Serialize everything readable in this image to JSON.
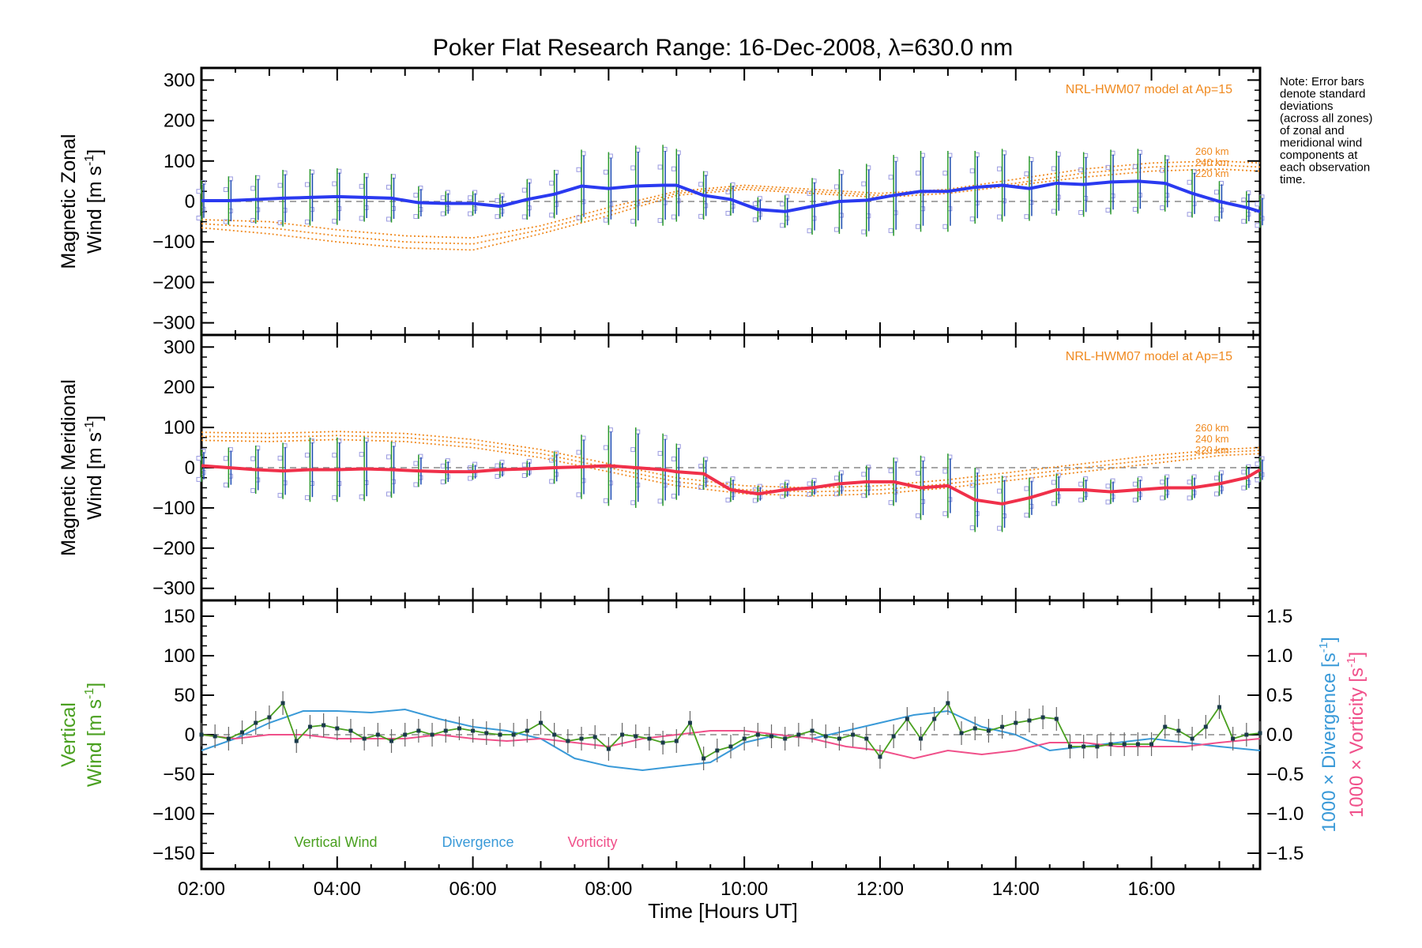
{
  "title": "Poker Flat Research Range: 16-Dec-2008, λ=630.0 nm",
  "note": [
    "Note: Error bars",
    "denote standard",
    "deviations",
    "(across all zones)",
    "of zonal and",
    "meridional wind",
    "components at",
    "each observation",
    "time."
  ],
  "xlabel": "Time [Hours UT]",
  "x_ticks": [
    "02:00",
    "04:00",
    "06:00",
    "08:00",
    "10:00",
    "12:00",
    "14:00",
    "16:00"
  ],
  "colors": {
    "zonal": "#2a3af0",
    "meridional": "#f0304a",
    "model": "#f08a20",
    "scatter": "#9a9ae0",
    "vertical": "#4aa020",
    "divergence": "#3a9ad8",
    "vorticity": "#f0508a",
    "errorbar_blue": "#1a4ab0",
    "errorbar_green": "#2a9a2a"
  },
  "chart_data": [
    {
      "type": "line",
      "panel": "zonal",
      "ylabel_line1": "Magnetic Zonal",
      "ylabel_line2": "Wind [m s",
      "ylabel_sup": "-1",
      "ylabel_close": "]",
      "ylim": [
        -330,
        330
      ],
      "y_ticks": [
        "300",
        "200",
        "100",
        "0",
        "−100",
        "−200",
        "−300"
      ],
      "y_tick_values": [
        300,
        200,
        100,
        0,
        -100,
        -200,
        -300
      ],
      "xlim": [
        2.0,
        17.6
      ],
      "model_label": "NRL-HWM07 model at Ap=15",
      "model_alt_labels": [
        "260 km",
        "240 km",
        "220 km"
      ],
      "series": [
        {
          "key": "wind",
          "x": [
            2.0,
            2.4,
            2.8,
            3.2,
            3.6,
            4.0,
            4.4,
            4.8,
            5.2,
            5.6,
            6.0,
            6.4,
            6.8,
            7.2,
            7.6,
            8.0,
            8.4,
            8.8,
            9.0,
            9.4,
            9.8,
            10.2,
            10.6,
            11.0,
            11.4,
            11.8,
            12.2,
            12.6,
            13.0,
            13.4,
            13.8,
            14.2,
            14.6,
            15.0,
            15.4,
            15.8,
            16.2,
            16.6,
            17.0,
            17.4,
            17.6
          ],
          "y": [
            2,
            2,
            5,
            8,
            10,
            12,
            10,
            8,
            -3,
            -5,
            -5,
            -12,
            5,
            18,
            38,
            32,
            38,
            40,
            40,
            15,
            5,
            -20,
            -25,
            -12,
            0,
            3,
            15,
            25,
            25,
            35,
            40,
            32,
            45,
            42,
            48,
            50,
            45,
            20,
            0,
            -15,
            -25
          ],
          "err": [
            50,
            60,
            60,
            70,
            70,
            70,
            60,
            60,
            40,
            30,
            30,
            30,
            50,
            60,
            90,
            90,
            100,
            100,
            90,
            60,
            40,
            30,
            40,
            70,
            80,
            90,
            100,
            100,
            100,
            90,
            90,
            80,
            80,
            80,
            80,
            80,
            70,
            60,
            50,
            40,
            40
          ]
        },
        {
          "key": "model260",
          "x": [
            2.0,
            3.0,
            4.0,
            5.0,
            6.0,
            7.0,
            8.0,
            9.0,
            10.0,
            11.0,
            12.0,
            13.0,
            14.0,
            15.0,
            16.0,
            17.0,
            17.6
          ],
          "y": [
            -45,
            -50,
            -70,
            -85,
            -90,
            -60,
            -15,
            25,
            40,
            30,
            20,
            30,
            55,
            80,
            95,
            100,
            95
          ]
        },
        {
          "key": "model240",
          "x": [
            2.0,
            3.0,
            4.0,
            5.0,
            6.0,
            7.0,
            8.0,
            9.0,
            10.0,
            11.0,
            12.0,
            13.0,
            14.0,
            15.0,
            16.0,
            17.0,
            17.6
          ],
          "y": [
            -55,
            -65,
            -85,
            -100,
            -105,
            -70,
            -25,
            20,
            35,
            25,
            15,
            25,
            45,
            70,
            85,
            90,
            85
          ]
        },
        {
          "key": "model220",
          "x": [
            2.0,
            3.0,
            4.0,
            5.0,
            6.0,
            7.0,
            8.0,
            9.0,
            10.0,
            11.0,
            12.0,
            13.0,
            14.0,
            15.0,
            16.0,
            17.0,
            17.6
          ],
          "y": [
            -65,
            -80,
            -100,
            -115,
            -120,
            -80,
            -35,
            15,
            30,
            20,
            10,
            20,
            40,
            60,
            75,
            80,
            75
          ]
        }
      ]
    },
    {
      "type": "line",
      "panel": "meridional",
      "ylabel_line1": "Magnetic Meridional",
      "ylabel_line2": "Wind [m s",
      "ylabel_sup": "-1",
      "ylabel_close": "]",
      "ylim": [
        -330,
        330
      ],
      "y_ticks": [
        "300",
        "200",
        "100",
        "0",
        "−100",
        "−200",
        "−300"
      ],
      "y_tick_values": [
        300,
        200,
        100,
        0,
        -100,
        -200,
        -300
      ],
      "xlim": [
        2.0,
        17.6
      ],
      "model_label": "NRL-HWM07 model at Ap=15",
      "model_alt_labels": [
        "260 km",
        "240 km",
        "220 km"
      ],
      "series": [
        {
          "key": "wind",
          "x": [
            2.0,
            2.4,
            2.8,
            3.2,
            3.6,
            4.0,
            4.4,
            4.8,
            5.2,
            5.6,
            6.0,
            6.4,
            6.8,
            7.2,
            7.6,
            8.0,
            8.4,
            8.8,
            9.0,
            9.4,
            9.8,
            10.2,
            10.6,
            11.0,
            11.4,
            11.8,
            12.2,
            12.6,
            13.0,
            13.4,
            13.8,
            14.2,
            14.6,
            15.0,
            15.4,
            15.8,
            16.2,
            16.6,
            17.0,
            17.4,
            17.6
          ],
          "y": [
            5,
            0,
            -5,
            -8,
            -5,
            -5,
            -3,
            -5,
            -8,
            -10,
            -10,
            -5,
            -3,
            0,
            2,
            5,
            0,
            -5,
            -10,
            -15,
            -55,
            -65,
            -55,
            -50,
            -40,
            -35,
            -35,
            -50,
            -45,
            -80,
            -90,
            -75,
            -55,
            -55,
            -60,
            -55,
            -50,
            -50,
            -40,
            -25,
            -5
          ],
          "err": [
            40,
            50,
            60,
            70,
            80,
            80,
            80,
            70,
            40,
            30,
            20,
            20,
            20,
            40,
            80,
            100,
            100,
            90,
            70,
            40,
            30,
            20,
            20,
            20,
            30,
            40,
            60,
            80,
            80,
            80,
            70,
            50,
            40,
            30,
            30,
            30,
            30,
            30,
            30,
            30,
            30
          ]
        },
        {
          "key": "model260",
          "x": [
            2.0,
            3.0,
            4.0,
            5.0,
            6.0,
            7.0,
            8.0,
            9.0,
            10.0,
            11.0,
            12.0,
            13.0,
            14.0,
            15.0,
            16.0,
            17.0,
            17.6
          ],
          "y": [
            88,
            85,
            90,
            85,
            70,
            45,
            10,
            -25,
            -45,
            -50,
            -45,
            -30,
            -10,
            10,
            30,
            45,
            50
          ]
        },
        {
          "key": "model240",
          "x": [
            2.0,
            3.0,
            4.0,
            5.0,
            6.0,
            7.0,
            8.0,
            9.0,
            10.0,
            11.0,
            12.0,
            13.0,
            14.0,
            15.0,
            16.0,
            17.0,
            17.6
          ],
          "y": [
            78,
            75,
            80,
            75,
            60,
            35,
            0,
            -35,
            -55,
            -60,
            -55,
            -40,
            -20,
            0,
            20,
            38,
            43
          ]
        },
        {
          "key": "model220",
          "x": [
            2.0,
            3.0,
            4.0,
            5.0,
            6.0,
            7.0,
            8.0,
            9.0,
            10.0,
            11.0,
            12.0,
            13.0,
            14.0,
            15.0,
            16.0,
            17.0,
            17.6
          ],
          "y": [
            68,
            65,
            70,
            65,
            50,
            25,
            -10,
            -45,
            -65,
            -70,
            -65,
            -50,
            -30,
            -10,
            10,
            30,
            35
          ]
        }
      ]
    },
    {
      "type": "line",
      "panel": "vertical",
      "ylabel_line1": "Vertical",
      "ylabel_line2": "Wind [m s",
      "ylabel_sup": "-1",
      "ylabel_close": "]",
      "ylim": [
        -170,
        170
      ],
      "y_ticks": [
        "150",
        "100",
        "50",
        "0",
        "−50",
        "−100",
        "−150"
      ],
      "y_tick_values": [
        150,
        100,
        50,
        0,
        -50,
        -100,
        -150
      ],
      "y2lim": [
        -1.7,
        1.7
      ],
      "y2_ticks": [
        "1.5",
        "1.0",
        "0.5",
        "0.0",
        "−0.5",
        "−1.0",
        "−1.5"
      ],
      "y2_tick_values": [
        1.5,
        1.0,
        0.5,
        0.0,
        -0.5,
        -1.0,
        -1.5
      ],
      "y2label_div_a": "1000 × Divergence [s",
      "y2label_div_sup": "-1",
      "y2label_div_close": "]",
      "y2label_vor_a": "1000 × Vorticity [s",
      "y2label_vor_sup": "-1",
      "y2label_vor_close": "]",
      "xlim": [
        2.0,
        17.6
      ],
      "legend": [
        "Vertical Wind",
        "Divergence",
        "Vorticity"
      ],
      "series": [
        {
          "key": "vertical",
          "x": [
            2.0,
            2.2,
            2.4,
            2.6,
            2.8,
            3.0,
            3.2,
            3.4,
            3.6,
            3.8,
            4.0,
            4.2,
            4.4,
            4.6,
            4.8,
            5.0,
            5.2,
            5.4,
            5.6,
            5.8,
            6.0,
            6.2,
            6.4,
            6.6,
            6.8,
            7.0,
            7.2,
            7.4,
            7.6,
            7.8,
            8.0,
            8.2,
            8.4,
            8.6,
            8.8,
            9.0,
            9.2,
            9.4,
            9.6,
            9.8,
            10.0,
            10.2,
            10.4,
            10.6,
            10.8,
            11.0,
            11.2,
            11.4,
            11.6,
            11.8,
            12.0,
            12.2,
            12.4,
            12.6,
            12.8,
            13.0,
            13.2,
            13.4,
            13.6,
            13.8,
            14.0,
            14.2,
            14.4,
            14.6,
            14.8,
            15.0,
            15.2,
            15.4,
            15.6,
            15.8,
            16.0,
            16.2,
            16.4,
            16.6,
            16.8,
            17.0,
            17.2,
            17.4,
            17.6
          ],
          "y": [
            0,
            -2,
            -5,
            3,
            15,
            22,
            40,
            -8,
            10,
            12,
            8,
            5,
            -5,
            0,
            -8,
            0,
            5,
            0,
            5,
            8,
            5,
            2,
            0,
            0,
            5,
            15,
            0,
            -8,
            -5,
            -3,
            -18,
            0,
            -2,
            -5,
            -10,
            -8,
            15,
            -30,
            -20,
            -15,
            -5,
            0,
            -2,
            -5,
            0,
            5,
            -2,
            -5,
            0,
            -5,
            -28,
            -2,
            20,
            -5,
            20,
            40,
            2,
            8,
            5,
            10,
            15,
            18,
            22,
            20,
            -15,
            -15,
            -15,
            -12,
            -12,
            -12,
            -12,
            10,
            5,
            -5,
            10,
            35,
            -5,
            0,
            2
          ]
        },
        {
          "key": "divergence",
          "x": [
            2.0,
            2.5,
            3.0,
            3.5,
            4.0,
            4.5,
            5.0,
            5.5,
            6.0,
            6.5,
            7.0,
            7.5,
            8.0,
            8.5,
            9.0,
            9.5,
            10.0,
            10.5,
            11.0,
            11.5,
            12.0,
            12.5,
            13.0,
            13.5,
            14.0,
            14.5,
            15.0,
            15.5,
            16.0,
            16.5,
            17.0,
            17.6
          ],
          "y": [
            -0.2,
            -0.05,
            0.15,
            0.3,
            0.3,
            0.28,
            0.32,
            0.2,
            0.1,
            0.05,
            -0.05,
            -0.3,
            -0.4,
            -0.45,
            -0.4,
            -0.35,
            -0.1,
            0.0,
            -0.05,
            0.05,
            0.15,
            0.25,
            0.3,
            0.1,
            0.0,
            -0.2,
            -0.15,
            -0.1,
            -0.05,
            -0.1,
            -0.15,
            -0.2
          ]
        },
        {
          "key": "vorticity",
          "x": [
            2.0,
            2.5,
            3.0,
            3.5,
            4.0,
            4.5,
            5.0,
            5.5,
            6.0,
            6.5,
            7.0,
            7.5,
            8.0,
            8.5,
            9.0,
            9.5,
            10.0,
            10.5,
            11.0,
            11.5,
            12.0,
            12.5,
            13.0,
            13.5,
            14.0,
            14.5,
            15.0,
            15.5,
            16.0,
            16.5,
            17.0,
            17.6
          ],
          "y": [
            0.0,
            -0.05,
            0.0,
            0.0,
            -0.05,
            -0.05,
            -0.05,
            0.0,
            -0.05,
            -0.08,
            -0.05,
            -0.1,
            -0.15,
            -0.05,
            0.0,
            0.05,
            0.05,
            0.0,
            -0.05,
            -0.15,
            -0.2,
            -0.3,
            -0.2,
            -0.25,
            -0.2,
            -0.1,
            -0.1,
            -0.15,
            -0.15,
            -0.15,
            -0.1,
            -0.05
          ]
        }
      ]
    }
  ]
}
